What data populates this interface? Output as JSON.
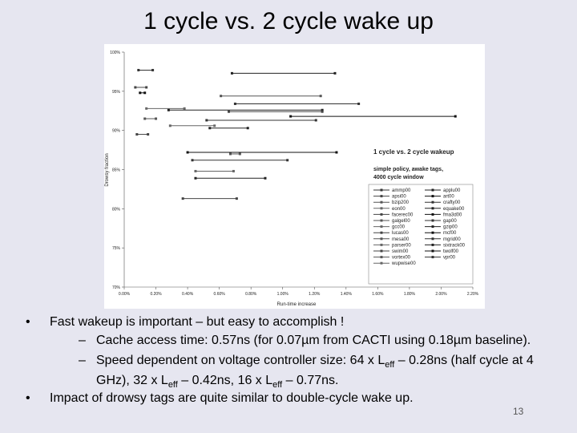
{
  "slide": {
    "title": "1 cycle vs. 2 cycle wake up",
    "bullets": [
      {
        "text": "Fast wakeup is important – but easy to accomplish !",
        "sub": [
          [
            "Cache access time: 0.57ns (for 0.07µm from CACTI using 0.18µm baseline)."
          ],
          [
            "Speed dependent on voltage controller size: 64 x L",
            "eff",
            " – 0.28ns (half cycle at 4 GHz), 32 x L",
            "eff",
            " – 0.42ns, 16 x L",
            "eff",
            " – 0.77ns."
          ]
        ]
      },
      {
        "text": "Impact of drowsy tags are quite similar to double-cycle wake up.",
        "sub": []
      }
    ],
    "page_number": "13"
  },
  "chart_data": {
    "type": "line",
    "title": "1 cycle vs. 2 cycle wakeup",
    "subtitle": [
      "simple policy, awake tags,",
      "4000 cycle window"
    ],
    "xlabel": "Run-time increase",
    "ylabel": "Drowsy fraction",
    "xlim": [
      0,
      2.2
    ],
    "ylim": [
      70,
      100
    ],
    "xticks": [
      {
        "value": 0,
        "label": "0.00%"
      },
      {
        "value": 0.2,
        "label": "0.20%"
      },
      {
        "value": 0.4,
        "label": "0.40%"
      },
      {
        "value": 0.6,
        "label": "0.60%"
      },
      {
        "value": 0.8,
        "label": "0.80%"
      },
      {
        "value": 1.0,
        "label": "1.00%"
      },
      {
        "value": 1.2,
        "label": "1.20%"
      },
      {
        "value": 1.4,
        "label": "1.40%"
      },
      {
        "value": 1.6,
        "label": "1.60%"
      },
      {
        "value": 1.8,
        "label": "1.80%"
      },
      {
        "value": 2.0,
        "label": "2.00%"
      },
      {
        "value": 2.2,
        "label": "2.20%"
      }
    ],
    "yticks": [
      {
        "value": 70,
        "label": "70%"
      },
      {
        "value": 75,
        "label": "75%"
      },
      {
        "value": 80,
        "label": "80%"
      },
      {
        "value": 85,
        "label": "85%"
      },
      {
        "value": 90,
        "label": "90%"
      },
      {
        "value": 95,
        "label": "95%"
      },
      {
        "value": 100,
        "label": "100%"
      }
    ],
    "grid": false,
    "legend": "lower right",
    "series": [
      {
        "name": "ammp00",
        "color": "#333333",
        "x": [
          0.09,
          0.18
        ],
        "values": [
          97.7,
          97.7
        ]
      },
      {
        "name": "applu00",
        "color": "#222222",
        "x": [
          0.68,
          1.33
        ],
        "values": [
          97.3,
          97.3
        ]
      },
      {
        "name": "apsi00",
        "color": "#444444",
        "x": [
          0.07,
          0.14
        ],
        "values": [
          95.5,
          95.5
        ]
      },
      {
        "name": "art00",
        "color": "#111111",
        "x": [
          0.1,
          0.13
        ],
        "values": [
          94.8,
          94.8
        ]
      },
      {
        "name": "bzip200",
        "color": "#555555",
        "x": [
          0.61,
          1.24
        ],
        "values": [
          94.4,
          94.4
        ]
      },
      {
        "name": "crafty00",
        "color": "#333333",
        "x": [
          0.7,
          1.48
        ],
        "values": [
          93.4,
          93.4
        ]
      },
      {
        "name": "eon00",
        "color": "#666666",
        "x": [
          0.14,
          0.38
        ],
        "values": [
          92.8,
          92.8
        ]
      },
      {
        "name": "equake00",
        "color": "#222222",
        "x": [
          0.28,
          1.25
        ],
        "values": [
          92.6,
          92.6
        ]
      },
      {
        "name": "facerec00",
        "color": "#444444",
        "x": [
          0.66,
          1.25
        ],
        "values": [
          92.4,
          92.4
        ]
      },
      {
        "name": "fma3d00",
        "color": "#111111",
        "x": [
          1.05,
          2.09
        ],
        "values": [
          91.8,
          91.8
        ]
      },
      {
        "name": "galgel00",
        "color": "#555555",
        "x": [
          0.13,
          0.2
        ],
        "values": [
          91.5,
          91.5
        ]
      },
      {
        "name": "gap00",
        "color": "#333333",
        "x": [
          0.52,
          1.21
        ],
        "values": [
          91.3,
          91.3
        ]
      },
      {
        "name": "gcc00",
        "color": "#666666",
        "x": [
          0.29,
          0.57
        ],
        "values": [
          90.6,
          90.6
        ]
      },
      {
        "name": "gzip00",
        "color": "#222222",
        "x": [
          0.54,
          0.78
        ],
        "values": [
          90.3,
          90.3
        ]
      },
      {
        "name": "lucas00",
        "color": "#444444",
        "x": [
          0.08,
          0.15
        ],
        "values": [
          89.5,
          89.5
        ]
      },
      {
        "name": "mcf00",
        "color": "#111111",
        "x": [
          0.4,
          1.34
        ],
        "values": [
          87.2,
          87.2
        ]
      },
      {
        "name": "mesa00",
        "color": "#555555",
        "x": [
          0.67,
          0.73
        ],
        "values": [
          87.0,
          87.0
        ]
      },
      {
        "name": "mgrid00",
        "color": "#333333",
        "x": [
          0.43,
          1.03
        ],
        "values": [
          86.2,
          86.2
        ]
      },
      {
        "name": "parser00",
        "color": "#666666",
        "x": [
          0.45,
          0.69
        ],
        "values": [
          84.8,
          84.8
        ]
      },
      {
        "name": "sixtrack00",
        "color": "#222222",
        "x": [
          0.45,
          0.89
        ],
        "values": [
          83.9,
          83.9
        ]
      },
      {
        "name": "swim00",
        "color": "#444444",
        "x": [
          0.37,
          0.71
        ],
        "values": [
          81.3,
          81.3
        ]
      },
      {
        "name": "twolf00",
        "color": "#111111",
        "x": [
          null,
          null
        ],
        "values": [
          null,
          null
        ]
      },
      {
        "name": "vortex00",
        "color": "#555555",
        "x": [
          null,
          null
        ],
        "values": [
          null,
          null
        ]
      },
      {
        "name": "vpr00",
        "color": "#333333",
        "x": [
          null,
          null
        ],
        "values": [
          null,
          null
        ]
      },
      {
        "name": "wupwise00",
        "color": "#666666",
        "x": [
          null,
          null
        ],
        "values": [
          null,
          null
        ]
      }
    ]
  }
}
